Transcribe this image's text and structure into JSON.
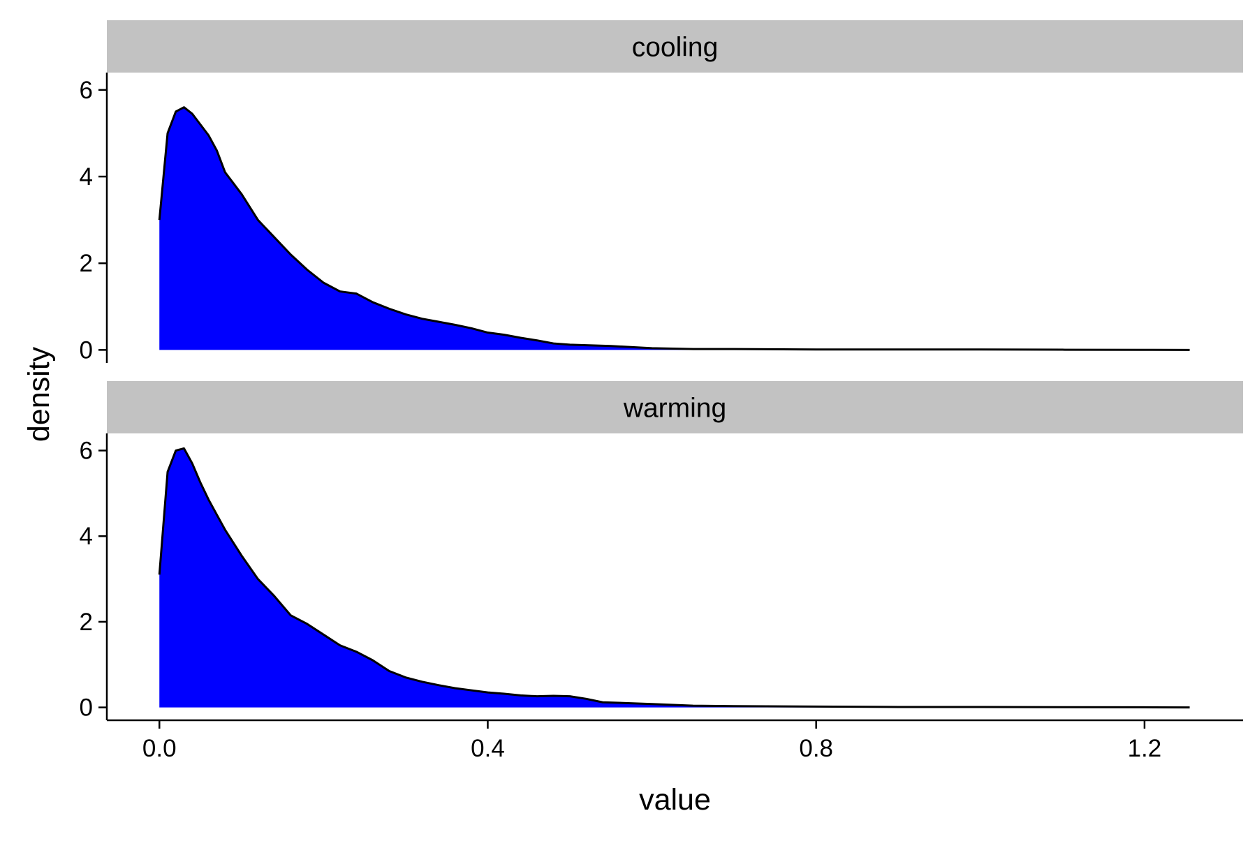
{
  "chart_data": {
    "type": "area",
    "xlabel": "value",
    "ylabel": "density",
    "xlim": [
      -0.064,
      1.32
    ],
    "ylim": [
      -0.3,
      6.4
    ],
    "x_ticks": [
      0.0,
      0.4,
      0.8,
      1.2
    ],
    "x_tick_labels": [
      "0.0",
      "0.4",
      "0.8",
      "1.2"
    ],
    "y_ticks": [
      0,
      2,
      4,
      6
    ],
    "y_tick_labels": [
      "0",
      "2",
      "4",
      "6"
    ],
    "fill_color": "#0000ff",
    "line_color": "#000000",
    "strip_color": "#c2c2c2",
    "grid": false,
    "panels": [
      {
        "strip_label": "cooling",
        "x": [
          0.0,
          0.01,
          0.02,
          0.03,
          0.04,
          0.05,
          0.06,
          0.07,
          0.08,
          0.09,
          0.1,
          0.12,
          0.14,
          0.16,
          0.18,
          0.2,
          0.22,
          0.24,
          0.26,
          0.28,
          0.3,
          0.32,
          0.34,
          0.36,
          0.38,
          0.4,
          0.42,
          0.44,
          0.46,
          0.48,
          0.5,
          0.55,
          0.6,
          0.65,
          0.7,
          0.8,
          0.9,
          1.0,
          1.1,
          1.2,
          1.255
        ],
        "y": [
          3.0,
          5.0,
          5.5,
          5.6,
          5.45,
          5.2,
          4.95,
          4.6,
          4.1,
          3.85,
          3.6,
          3.0,
          2.6,
          2.2,
          1.85,
          1.55,
          1.35,
          1.3,
          1.1,
          0.95,
          0.82,
          0.72,
          0.65,
          0.58,
          0.5,
          0.4,
          0.35,
          0.28,
          0.22,
          0.15,
          0.12,
          0.09,
          0.04,
          0.02,
          0.02,
          0.01,
          0.01,
          0.01,
          0.005,
          0.003,
          0.0
        ]
      },
      {
        "strip_label": "warming",
        "x": [
          0.0,
          0.01,
          0.02,
          0.03,
          0.04,
          0.05,
          0.06,
          0.07,
          0.08,
          0.09,
          0.1,
          0.12,
          0.14,
          0.16,
          0.18,
          0.2,
          0.22,
          0.24,
          0.26,
          0.28,
          0.3,
          0.32,
          0.34,
          0.36,
          0.38,
          0.4,
          0.42,
          0.44,
          0.46,
          0.48,
          0.5,
          0.52,
          0.54,
          0.6,
          0.65,
          0.7,
          0.8,
          0.9,
          1.0,
          1.1,
          1.2,
          1.255
        ],
        "y": [
          3.1,
          5.5,
          6.0,
          6.05,
          5.7,
          5.25,
          4.85,
          4.5,
          4.15,
          3.85,
          3.55,
          3.0,
          2.6,
          2.15,
          1.95,
          1.7,
          1.45,
          1.3,
          1.1,
          0.85,
          0.7,
          0.6,
          0.52,
          0.45,
          0.4,
          0.35,
          0.32,
          0.28,
          0.26,
          0.27,
          0.26,
          0.2,
          0.12,
          0.08,
          0.04,
          0.03,
          0.02,
          0.01,
          0.01,
          0.005,
          0.003,
          0.0
        ]
      }
    ]
  }
}
